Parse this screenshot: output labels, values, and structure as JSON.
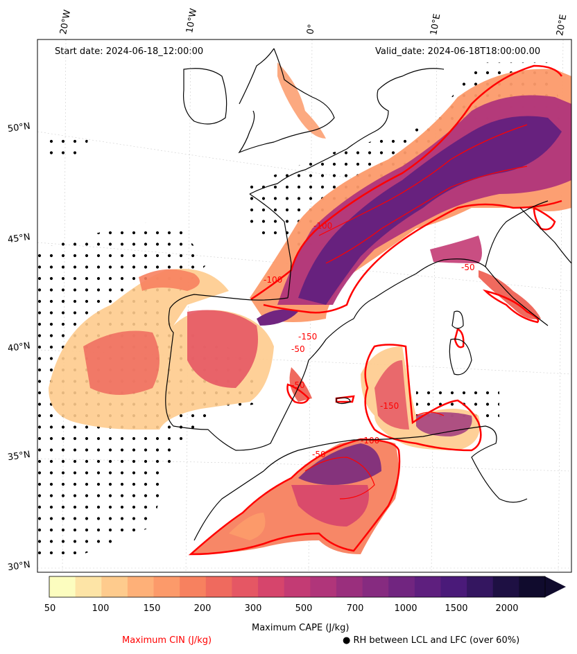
{
  "header": {
    "start_date": "Start date: 2024-06-18_12:00:00",
    "valid_date": "Valid_date: 2024-06-18T18:00:00.00"
  },
  "axes": {
    "lon_labels": [
      "20°W",
      "10°W",
      "0°",
      "10°E",
      "20°E"
    ],
    "lat_labels": [
      "50°N",
      "45°N",
      "40°N",
      "35°N",
      "30°N"
    ]
  },
  "colorbar": {
    "label": "Maximum CAPE (J/kg)",
    "ticks": [
      "50",
      "100",
      "150",
      "200",
      "300",
      "500",
      "700",
      "1000",
      "1500",
      "2000"
    ],
    "colors": [
      "#fcfdbf",
      "#fde4a6",
      "#fecb8d",
      "#feb078",
      "#fc9a6a",
      "#f7815f",
      "#ef6a5e",
      "#e55764",
      "#d6456c",
      "#c33b74",
      "#b0357a",
      "#9a2f7d",
      "#862b80",
      "#712580",
      "#5e1f7e",
      "#4a1a79",
      "#341660",
      "#1e1043",
      "#100b2d"
    ],
    "extend": "max"
  },
  "legend": {
    "cin_label": "Maximum CIN (J/kg)",
    "cin_color": "#ff0000",
    "rh_label": "RH between LCL and LFC (over 60%)",
    "rh_symbol": "●"
  }
}
